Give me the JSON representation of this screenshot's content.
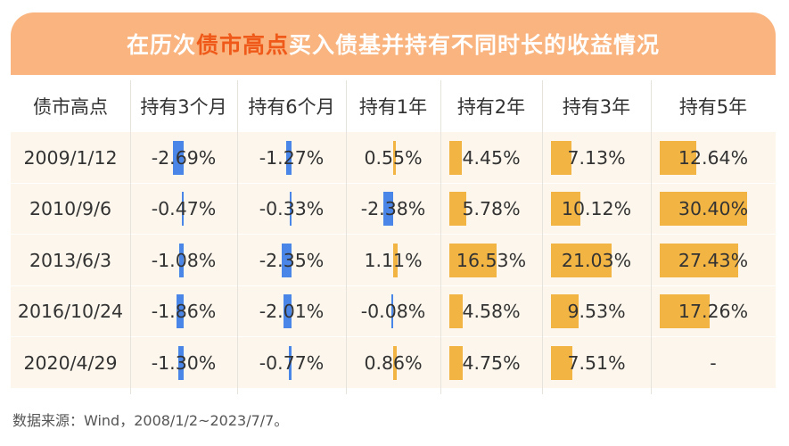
{
  "title": {
    "part1": "在历次",
    "highlight": "债市高点",
    "part2": "买入债基并持有不同时长的收益情况"
  },
  "colors": {
    "banner": "#f9b47f",
    "highlight": "#ef5a1a",
    "negative_bar": "#4a86e8",
    "positive_bar": "#f2b544",
    "row_bg": "#fcf6ec"
  },
  "chart_data": {
    "type": "table",
    "columns": [
      "债市高点",
      "持有3个月",
      "持有6个月",
      "持有1年",
      "持有2年",
      "持有3年",
      "持有5年"
    ],
    "rows": [
      {
        "date": "2009/1/12",
        "values": [
          "-2.69%",
          "-1.27%",
          "0.55%",
          "4.45%",
          "7.13%",
          "12.64%"
        ],
        "numeric": [
          -2.69,
          -1.27,
          0.55,
          4.45,
          7.13,
          12.64
        ]
      },
      {
        "date": "2010/9/6",
        "values": [
          "-0.47%",
          "-0.33%",
          "-2.38%",
          "5.78%",
          "10.12%",
          "30.40%"
        ],
        "numeric": [
          -0.47,
          -0.33,
          -2.38,
          5.78,
          10.12,
          30.4
        ]
      },
      {
        "date": "2013/6/3",
        "values": [
          "-1.08%",
          "-2.35%",
          "1.11%",
          "16.53%",
          "21.03%",
          "27.43%"
        ],
        "numeric": [
          -1.08,
          -2.35,
          1.11,
          16.53,
          21.03,
          27.43
        ]
      },
      {
        "date": "2016/10/24",
        "values": [
          "-1.86%",
          "-2.01%",
          "-0.08%",
          "4.58%",
          "9.53%",
          "17.26%"
        ],
        "numeric": [
          -1.86,
          -2.01,
          -0.08,
          4.58,
          9.53,
          17.26
        ]
      },
      {
        "date": "2020/4/29",
        "values": [
          "-1.30%",
          "-0.77%",
          "0.86%",
          "4.75%",
          "7.51%",
          "-"
        ],
        "numeric": [
          -1.3,
          -0.77,
          0.86,
          4.75,
          7.51,
          null
        ]
      }
    ]
  },
  "footnote": "数据来源：Wind，2008/1/2~2023/7/7。"
}
